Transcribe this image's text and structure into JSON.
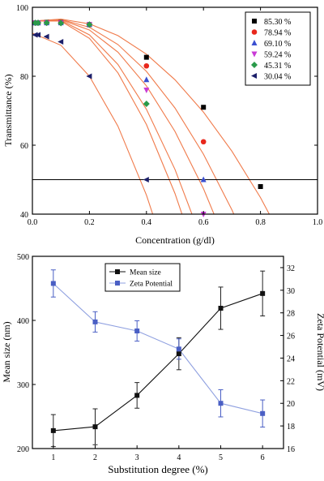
{
  "chart_data": [
    {
      "type": "scatter",
      "xlabel": "Concentration (g/dl)",
      "ylabel": "Transmittance (%)",
      "xlim": [
        0.0,
        1.0
      ],
      "ylim": [
        40,
        100
      ],
      "x_ticks": [
        "0.0",
        "0.2",
        "0.4",
        "0.6",
        "0.8",
        "1.0"
      ],
      "y_ticks": [
        "40",
        "60",
        "80",
        "100"
      ],
      "reference_line_y": 50,
      "legend_position": "top-right",
      "fit_color": "#f07a4a",
      "series": [
        {
          "name": "85.30 %",
          "marker": "square",
          "color": "#000000",
          "points": [
            [
              0.01,
              95.5
            ],
            [
              0.02,
              95.5
            ],
            [
              0.05,
              95.6
            ],
            [
              0.1,
              95.6
            ],
            [
              0.2,
              95.0
            ],
            [
              0.4,
              85.5
            ],
            [
              0.6,
              71.0
            ],
            [
              0.8,
              48.0
            ]
          ],
          "fit": [
            [
              0.0,
              96.0
            ],
            [
              0.1,
              96.6
            ],
            [
              0.2,
              95.2
            ],
            [
              0.3,
              91.8
            ],
            [
              0.4,
              86.4
            ],
            [
              0.5,
              79.0
            ],
            [
              0.6,
              69.6
            ],
            [
              0.7,
              58.2
            ],
            [
              0.8,
              44.8
            ],
            [
              0.87,
              33.9
            ]
          ]
        },
        {
          "name": "78.94 %",
          "marker": "circle",
          "color": "#e8271c",
          "points": [
            [
              0.01,
              95.5
            ],
            [
              0.02,
              95.5
            ],
            [
              0.05,
              95.5
            ],
            [
              0.1,
              95.5
            ],
            [
              0.2,
              95.0
            ],
            [
              0.4,
              83.0
            ],
            [
              0.6,
              61.0
            ]
          ],
          "fit": [
            [
              0.0,
              96.0
            ],
            [
              0.1,
              96.5
            ],
            [
              0.2,
              94.2
            ],
            [
              0.3,
              89.2
            ],
            [
              0.4,
              81.4
            ],
            [
              0.5,
              70.8
            ],
            [
              0.6,
              57.4
            ],
            [
              0.7,
              41.2
            ],
            [
              0.76,
              29.9
            ]
          ]
        },
        {
          "name": "69.10 %",
          "marker": "triangle-up",
          "color": "#3a4fd0",
          "points": [
            [
              0.01,
              95.5
            ],
            [
              0.02,
              95.5
            ],
            [
              0.05,
              95.5
            ],
            [
              0.1,
              95.5
            ],
            [
              0.2,
              95.0
            ],
            [
              0.4,
              79.0
            ],
            [
              0.6,
              50.0
            ]
          ],
          "fit": [
            [
              0.0,
              96.0
            ],
            [
              0.1,
              96.4
            ],
            [
              0.2,
              93.4
            ],
            [
              0.3,
              87.0
            ],
            [
              0.4,
              77.2
            ],
            [
              0.5,
              64.0
            ],
            [
              0.6,
              47.4
            ],
            [
              0.7,
              27.4
            ]
          ]
        },
        {
          "name": "59.24 %",
          "marker": "triangle-down",
          "color": "#c93ad6",
          "points": [
            [
              0.01,
              95.5
            ],
            [
              0.02,
              95.5
            ],
            [
              0.05,
              95.5
            ],
            [
              0.1,
              95.5
            ],
            [
              0.2,
              95.0
            ],
            [
              0.4,
              76.0
            ],
            [
              0.6,
              40.0
            ]
          ],
          "fit": [
            [
              0.0,
              96.0
            ],
            [
              0.1,
              96.2
            ],
            [
              0.2,
              92.0
            ],
            [
              0.3,
              83.4
            ],
            [
              0.4,
              70.4
            ],
            [
              0.5,
              53.0
            ],
            [
              0.6,
              31.2
            ]
          ]
        },
        {
          "name": "45.31 %",
          "marker": "diamond",
          "color": "#2a9a4a",
          "points": [
            [
              0.01,
              95.5
            ],
            [
              0.02,
              95.5
            ],
            [
              0.05,
              95.5
            ],
            [
              0.1,
              95.4
            ],
            [
              0.2,
              95.0
            ],
            [
              0.4,
              72.0
            ]
          ],
          "fit": [
            [
              0.0,
              96.0
            ],
            [
              0.1,
              96.0
            ],
            [
              0.2,
              91.0
            ],
            [
              0.3,
              81.0
            ],
            [
              0.4,
              66.0
            ],
            [
              0.5,
              46.0
            ],
            [
              0.57,
              29.0
            ]
          ]
        },
        {
          "name": "30.04 %",
          "marker": "triangle-left",
          "color": "#1c1f6a",
          "points": [
            [
              0.01,
              92.0
            ],
            [
              0.02,
              92.0
            ],
            [
              0.05,
              91.5
            ],
            [
              0.1,
              90.0
            ],
            [
              0.2,
              80.0
            ],
            [
              0.4,
              50.0
            ]
          ],
          "fit": [
            [
              0.0,
              92.5
            ],
            [
              0.1,
              89.0
            ],
            [
              0.2,
              80.0
            ],
            [
              0.3,
              65.5
            ],
            [
              0.4,
              45.5
            ],
            [
              0.45,
              33.0
            ]
          ]
        }
      ]
    },
    {
      "type": "line",
      "xlabel": "Substitution  degree (%)",
      "ylabel": "Mean size (nm)",
      "y2label": "Zeta Potential (mV)",
      "x": [
        1,
        2,
        3,
        4,
        5,
        6
      ],
      "xlim": [
        0.5,
        6.5
      ],
      "ylim": [
        200,
        500
      ],
      "y2lim": [
        16,
        33
      ],
      "x_ticks": [
        "1",
        "2",
        "3",
        "4",
        "5",
        "6"
      ],
      "y_ticks": [
        "200",
        "300",
        "400",
        "500"
      ],
      "y2_ticks": [
        "16",
        "18",
        "20",
        "22",
        "24",
        "26",
        "28",
        "30",
        "32"
      ],
      "legend_position": "top-left",
      "series": [
        {
          "name": "Mean size",
          "axis": "left",
          "marker": "square",
          "color": "#111111",
          "values": [
            228,
            234,
            283,
            348,
            419,
            442
          ],
          "errors": [
            25,
            28,
            20,
            25,
            33,
            35
          ]
        },
        {
          "name": "Zeta Potential",
          "axis": "right",
          "marker": "square",
          "color": "#4a5fc4",
          "values": [
            30.6,
            27.2,
            26.4,
            24.8,
            20.0,
            19.1
          ],
          "errors": [
            1.2,
            0.9,
            0.9,
            0.9,
            1.2,
            1.2
          ]
        }
      ]
    }
  ]
}
